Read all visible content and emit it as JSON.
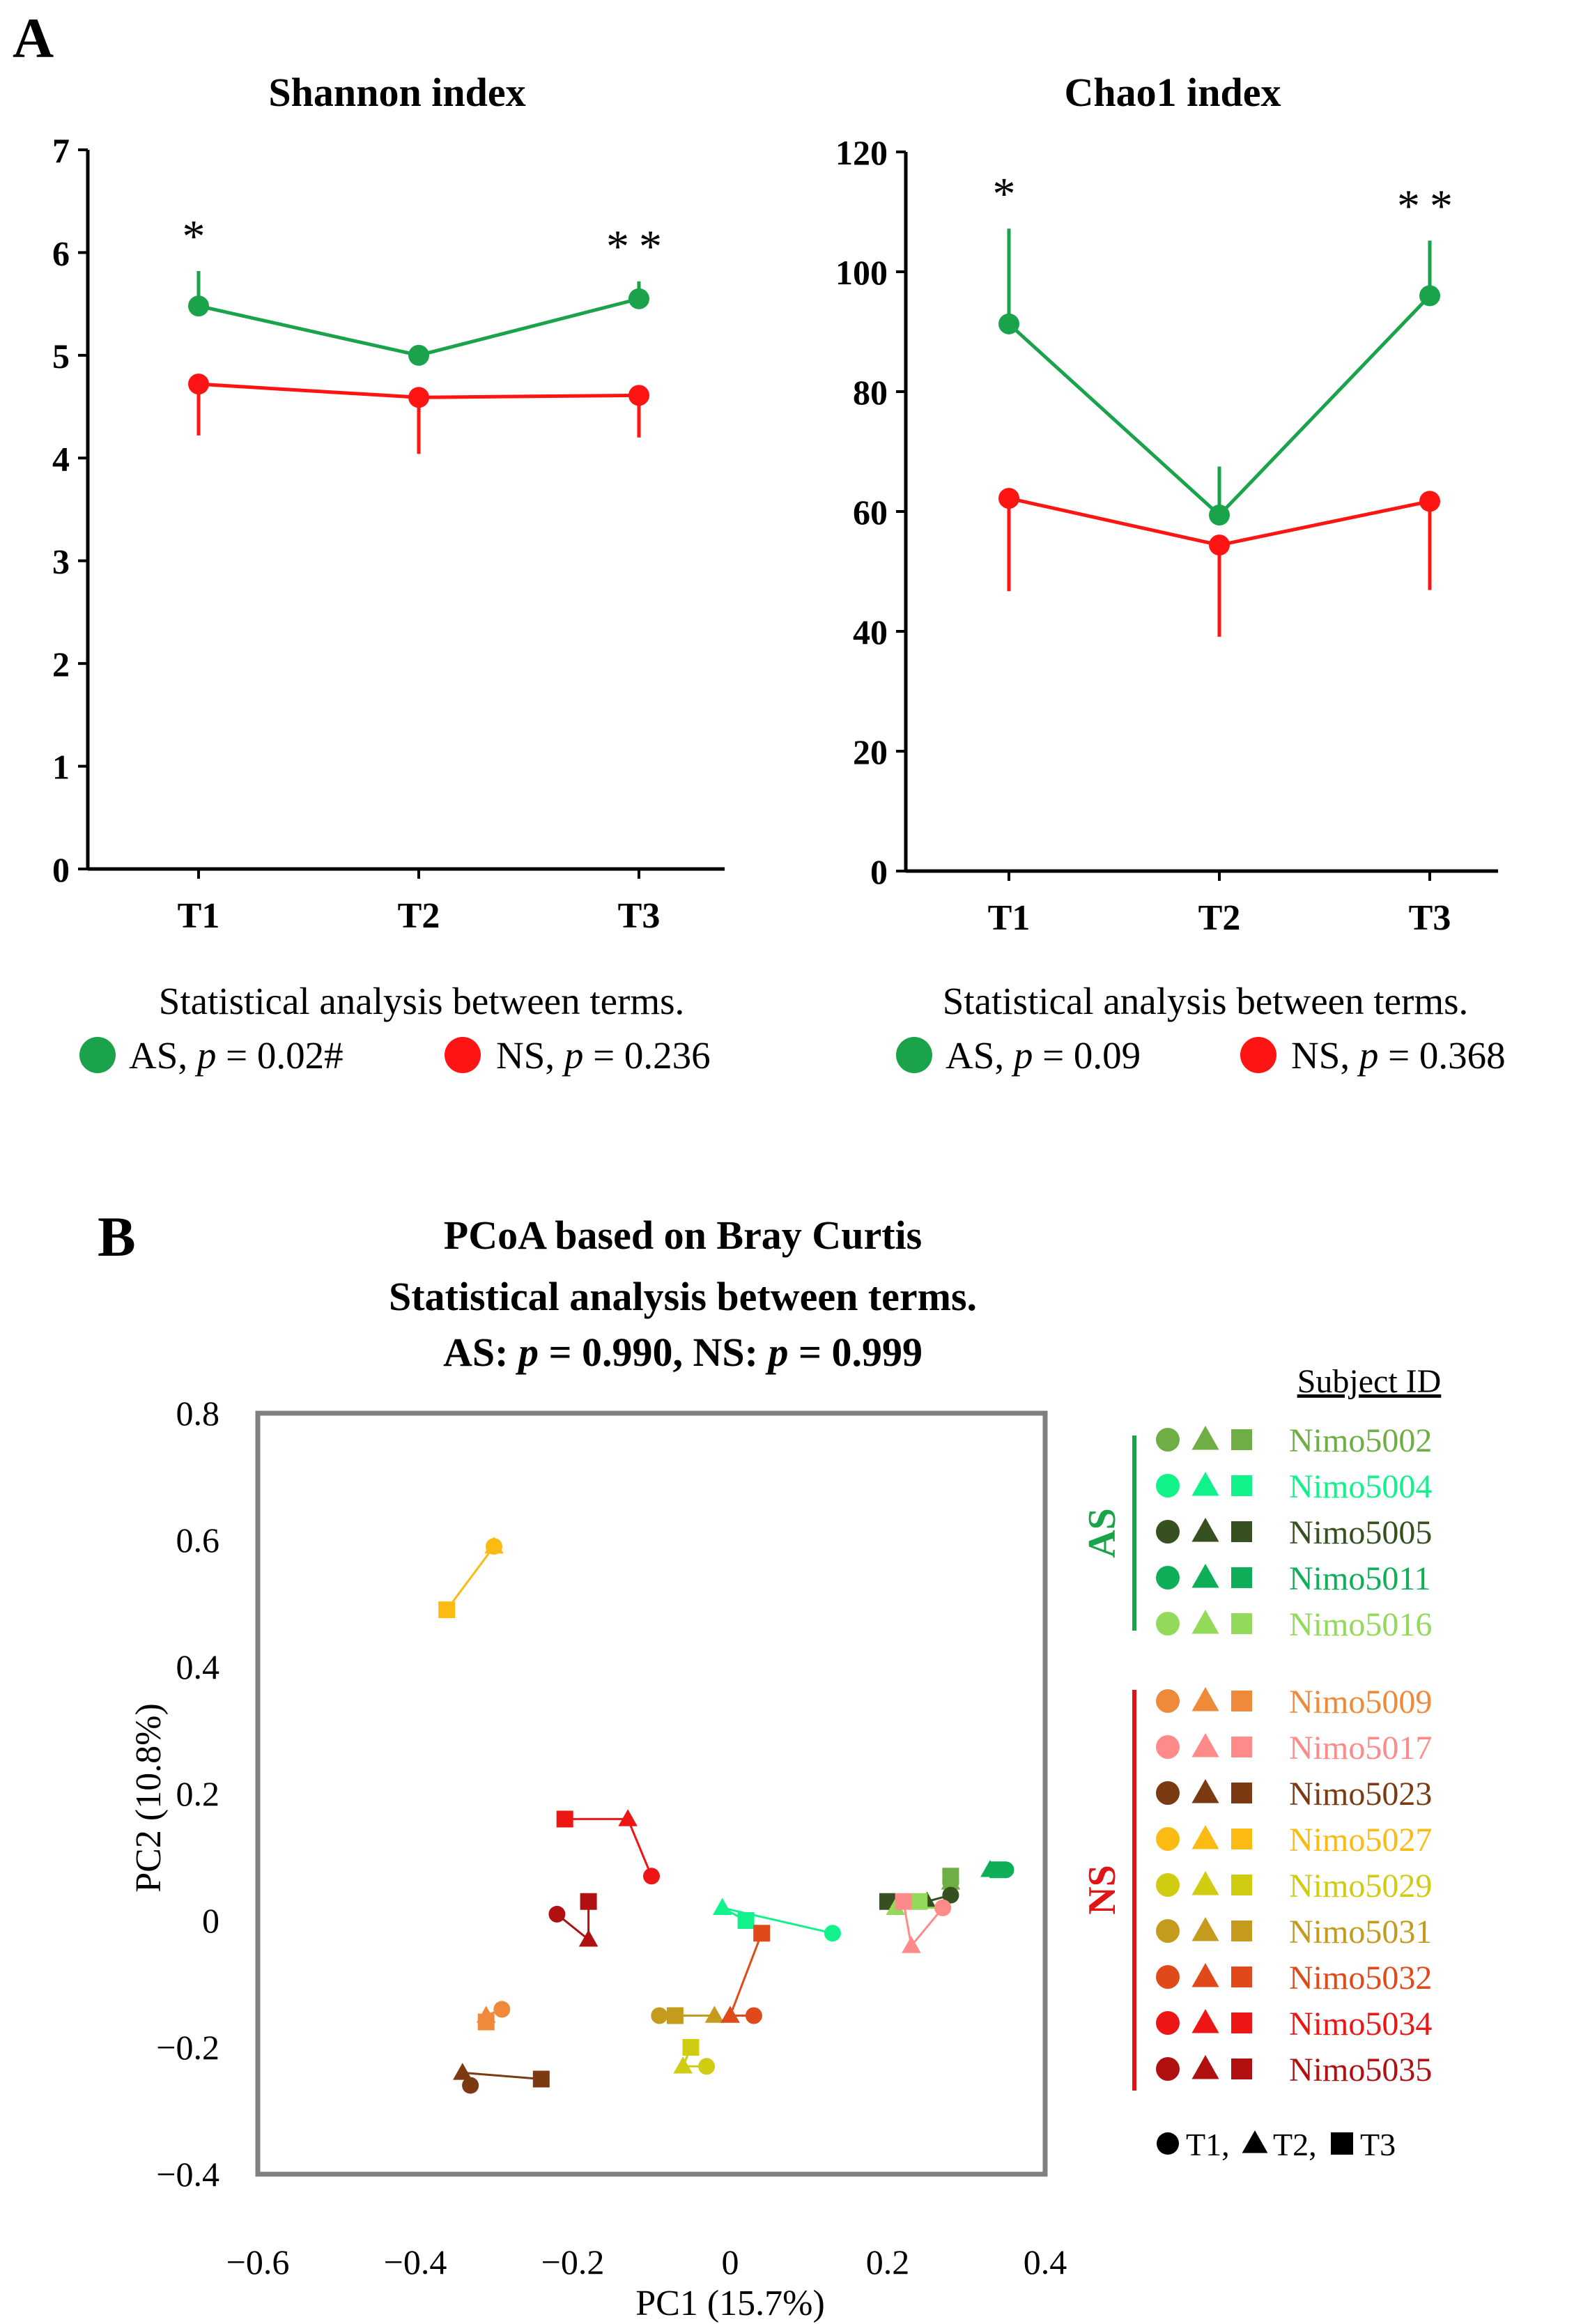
{
  "chart_data": [
    {
      "panel": "A",
      "type": "line",
      "title": "Shannon index",
      "categories": [
        "T1",
        "T2",
        "T3"
      ],
      "ylim": [
        0,
        7
      ],
      "yticks": [
        0,
        1,
        2,
        3,
        4,
        5,
        6,
        7
      ],
      "significance": [
        "*",
        "",
        "**"
      ],
      "series": [
        {
          "name": "AS",
          "color": "#1aa34a",
          "values": [
            5.48,
            5.0,
            5.55
          ],
          "err_up": [
            0.34,
            0.07,
            0.17
          ],
          "err_down": [
            0,
            0,
            0
          ]
        },
        {
          "name": "NS",
          "color": "#ff1414",
          "values": [
            4.72,
            4.59,
            4.61
          ],
          "err_up": [
            0,
            0,
            0
          ],
          "err_down": [
            0.5,
            0.55,
            0.41
          ]
        }
      ],
      "stats_title": "Statistical analysis between terms.",
      "stats": [
        {
          "group": "AS",
          "p_label": "p",
          "p_value": " = 0.02#",
          "color": "#1aa34a"
        },
        {
          "group": "NS",
          "p_label": "p",
          "p_value": " = 0.236",
          "color": "#ff1414"
        }
      ]
    },
    {
      "panel": "",
      "type": "line",
      "title": "Chao1 index",
      "categories": [
        "T1",
        "T2",
        "T3"
      ],
      "ylim": [
        0,
        120
      ],
      "yticks": [
        0,
        20,
        40,
        60,
        80,
        100,
        120
      ],
      "significance": [
        "*",
        "",
        "**"
      ],
      "series": [
        {
          "name": "AS",
          "color": "#1aa34a",
          "values": [
            91.3,
            59.4,
            96.0
          ],
          "err_up": [
            15.9,
            8.1,
            9.2
          ],
          "err_down": [
            0,
            0,
            0
          ]
        },
        {
          "name": "NS",
          "color": "#ff1414",
          "values": [
            62.2,
            54.4,
            61.7
          ],
          "err_up": [
            0,
            0,
            0
          ],
          "err_down": [
            15.5,
            15.3,
            14.8
          ]
        }
      ],
      "stats_title": "Statistical analysis between terms.",
      "stats": [
        {
          "group": "AS",
          "p_label": "p",
          "p_value": " = 0.09",
          "color": "#1aa34a"
        },
        {
          "group": "NS",
          "p_label": "p",
          "p_value": " = 0.368",
          "color": "#ff1414"
        }
      ]
    },
    {
      "panel": "B",
      "type": "scatter",
      "title_lines": [
        "PCoA based on Bray Curtis",
        "Statistical analysis between terms."
      ],
      "title_stats": {
        "as_prefix": "AS: ",
        "as_p": "p",
        "as_value": " = 0.990, ",
        "ns_prefix": "NS: ",
        "ns_p": "p",
        "ns_value": " = 0.999"
      },
      "xlabel": "PC1 (15.7%)",
      "ylabel": "PC2 (10.8%)",
      "xlim": [
        -0.6,
        0.4
      ],
      "ylim": [
        -0.4,
        0.8
      ],
      "xticks": [
        -0.6,
        -0.4,
        -0.2,
        0,
        0.2,
        0.4
      ],
      "yticks": [
        -0.4,
        -0.2,
        0,
        0.2,
        0.4,
        0.6,
        0.8
      ],
      "legend_title": "Subject ID",
      "group_labels": {
        "AS": "AS",
        "NS": "NS"
      },
      "group_colors": {
        "AS": "#1aa34a",
        "NS": "#e01515"
      },
      "time_legend": [
        {
          "shape": "circle",
          "label": "T1, "
        },
        {
          "shape": "triangle",
          "label": "T2, "
        },
        {
          "shape": "square",
          "label": "T3"
        }
      ],
      "subjects": [
        {
          "id": "Nimo5002",
          "group": "AS",
          "color": "#6fae45",
          "points": [
            [
              0.28,
              0.06
            ],
            [
              0.28,
              0.06
            ],
            [
              0.28,
              0.07
            ]
          ]
        },
        {
          "id": "Nimo5004",
          "group": "AS",
          "color": "#12f28a",
          "points": [
            [
              0.13,
              -0.02
            ],
            [
              -0.01,
              0.02
            ],
            [
              0.02,
              0.0
            ]
          ]
        },
        {
          "id": "Nimo5005",
          "group": "AS",
          "color": "#36501f",
          "points": [
            [
              0.28,
              0.04
            ],
            [
              0.25,
              0.03
            ],
            [
              0.2,
              0.03
            ]
          ]
        },
        {
          "id": "Nimo5011",
          "group": "AS",
          "color": "#0fae58",
          "points": [
            [
              0.35,
              0.08
            ],
            [
              0.33,
              0.08
            ],
            [
              0.34,
              0.08
            ]
          ]
        },
        {
          "id": "Nimo5016",
          "group": "AS",
          "color": "#93d95a",
          "points": [
            [
              0.27,
              0.02
            ],
            [
              0.21,
              0.02
            ],
            [
              0.24,
              0.03
            ]
          ]
        },
        {
          "id": "Nimo5009",
          "group": "NS",
          "color": "#ee8a3a",
          "points": [
            [
              -0.29,
              -0.14
            ],
            [
              -0.31,
              -0.15
            ],
            [
              -0.31,
              -0.16
            ]
          ]
        },
        {
          "id": "Nimo5017",
          "group": "NS",
          "color": "#ff8a8a",
          "points": [
            [
              0.27,
              0.02
            ],
            [
              0.23,
              -0.04
            ],
            [
              0.22,
              0.03
            ]
          ]
        },
        {
          "id": "Nimo5023",
          "group": "NS",
          "color": "#7b3a12",
          "points": [
            [
              -0.33,
              -0.26
            ],
            [
              -0.34,
              -0.24
            ],
            [
              -0.24,
              -0.25
            ]
          ]
        },
        {
          "id": "Nimo5027",
          "group": "NS",
          "color": "#fbbb12",
          "points": [
            [
              -0.3,
              0.59
            ],
            [
              -0.3,
              0.59
            ],
            [
              -0.36,
              0.49
            ]
          ]
        },
        {
          "id": "Nimo5029",
          "group": "NS",
          "color": "#cfcc12",
          "points": [
            [
              -0.03,
              -0.23
            ],
            [
              -0.06,
              -0.23
            ],
            [
              -0.05,
              -0.2
            ]
          ]
        },
        {
          "id": "Nimo5031",
          "group": "NS",
          "color": "#c59b1e",
          "points": [
            [
              -0.09,
              -0.15
            ],
            [
              -0.02,
              -0.15
            ],
            [
              -0.07,
              -0.15
            ]
          ]
        },
        {
          "id": "Nimo5032",
          "group": "NS",
          "color": "#e04a1a",
          "points": [
            [
              0.03,
              -0.15
            ],
            [
              0.0,
              -0.15
            ],
            [
              0.04,
              -0.02
            ]
          ]
        },
        {
          "id": "Nimo5034",
          "group": "NS",
          "color": "#ee1515",
          "points": [
            [
              -0.1,
              0.07
            ],
            [
              -0.13,
              0.16
            ],
            [
              -0.21,
              0.16
            ]
          ]
        },
        {
          "id": "Nimo5035",
          "group": "NS",
          "color": "#b01010",
          "points": [
            [
              -0.22,
              0.01
            ],
            [
              -0.18,
              -0.03
            ],
            [
              -0.18,
              0.03
            ]
          ]
        }
      ]
    }
  ]
}
